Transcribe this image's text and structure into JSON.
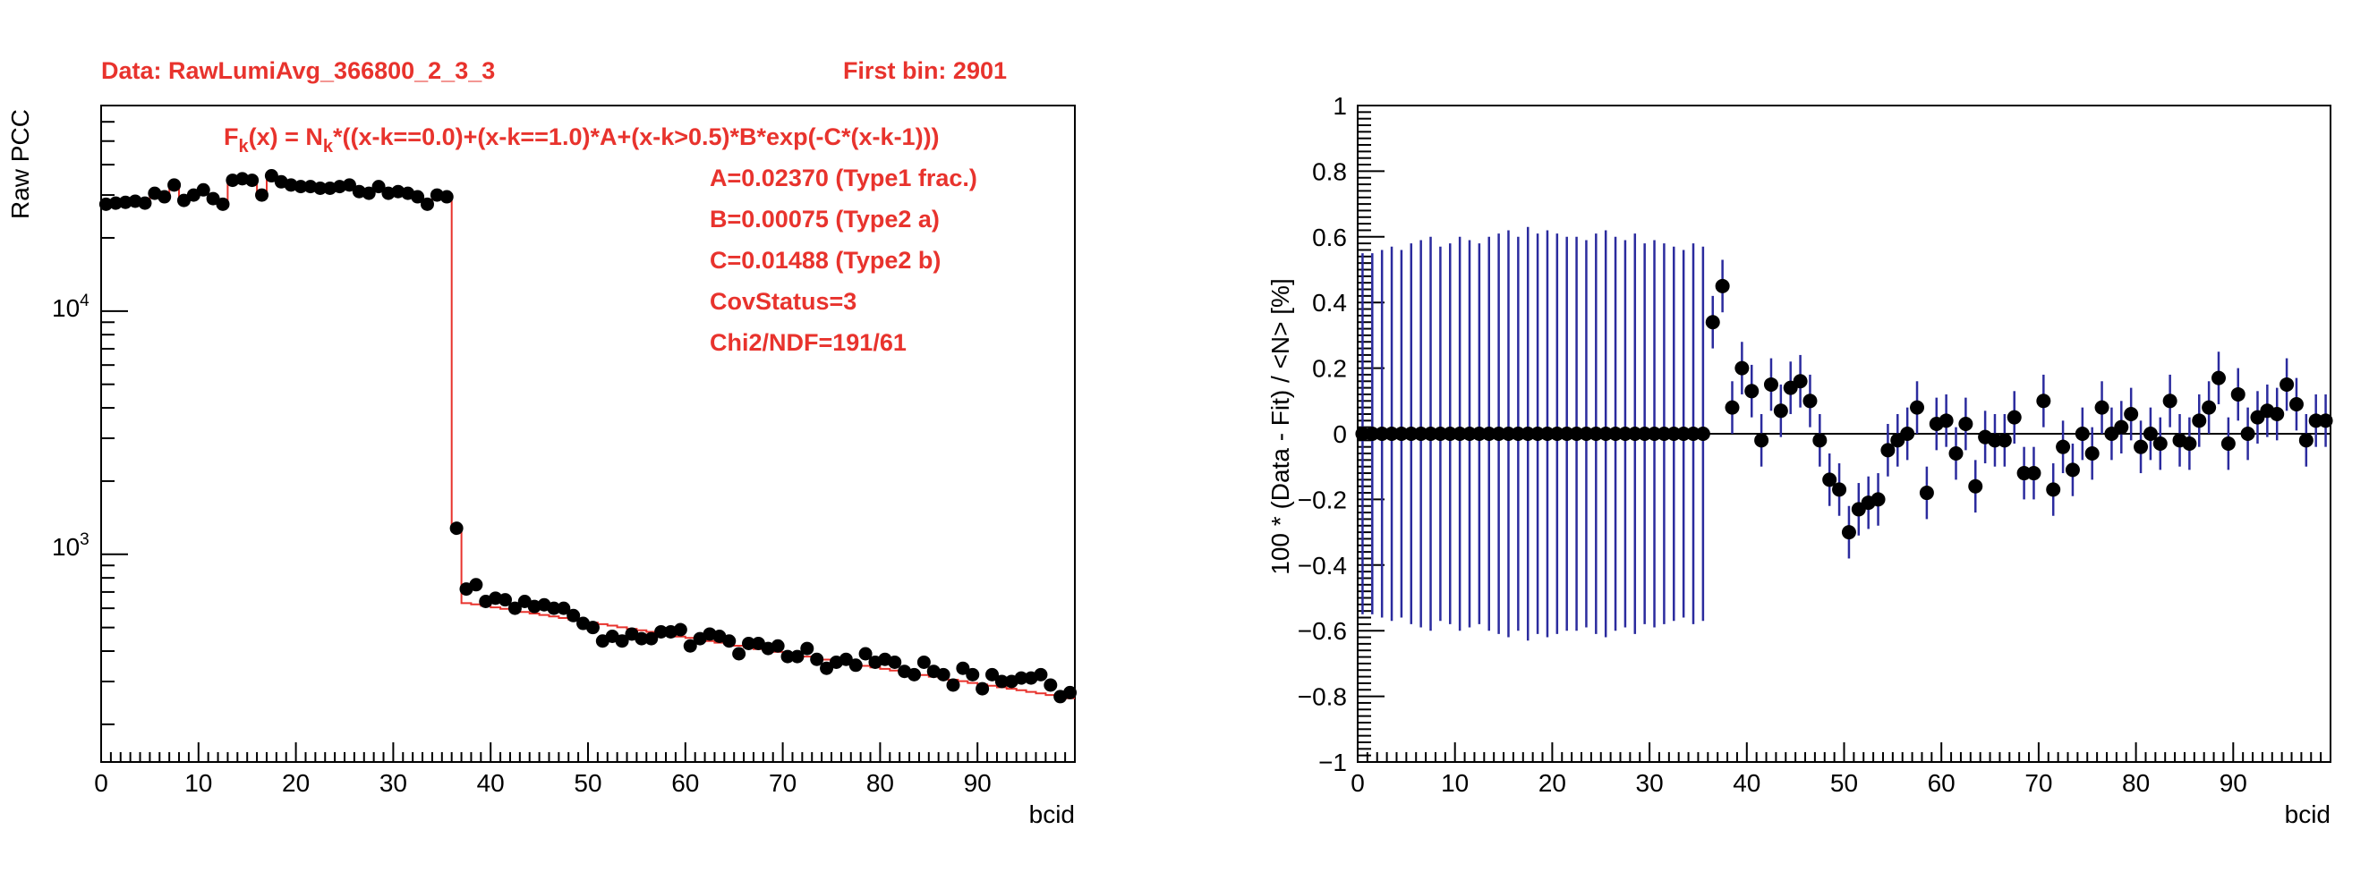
{
  "chart_data": [
    {
      "type": "scatter",
      "header_left": "Data: RawLumiAvg_366800_2_3_3",
      "header_right": "First bin: 2901",
      "formula_main": "F",
      "formula_sub1": "k",
      "formula_mid": "(x) = N",
      "formula_sub2": "k",
      "formula_rest": "*((x-k==0.0)+(x-k==1.0)*A+(x-k>0.5)*B*exp(-C*(x-k-1)))",
      "param_lines": [
        "A=0.02370 (Type1 frac.)",
        "B=0.00075 (Type2 a)",
        "C=0.01488 (Type2 b)",
        "CovStatus=3",
        "Chi2/NDF=191/61"
      ],
      "ylabel": "Raw PCC",
      "xlabel": "bcid",
      "y_scale": "log",
      "xlim": [
        0,
        100
      ],
      "ylim": [
        140,
        70000
      ],
      "x_tick_labels": [
        "0",
        "10",
        "20",
        "30",
        "40",
        "50",
        "60",
        "70",
        "80",
        "90"
      ],
      "y_tick_labels": [
        {
          "base": "10",
          "exp": "4",
          "value": 10000
        },
        {
          "base": "10",
          "exp": "3",
          "value": 1000
        }
      ],
      "series": [
        {
          "role": "data",
          "x": [
            0,
            1,
            2,
            3,
            4,
            5,
            6,
            7,
            8,
            9,
            10,
            11,
            12,
            13,
            14,
            15,
            16,
            17,
            18,
            19,
            20,
            21,
            22,
            23,
            24,
            25,
            26,
            27,
            28,
            29,
            30,
            31,
            32,
            33,
            34,
            35,
            36,
            37,
            38,
            39,
            40,
            41,
            42,
            43,
            44,
            45,
            46,
            47,
            48,
            49,
            50,
            51,
            52,
            53,
            54,
            55,
            56,
            57,
            58,
            59,
            60,
            61,
            62,
            63,
            64,
            65,
            66,
            67,
            68,
            69,
            70,
            71,
            72,
            73,
            74,
            75,
            76,
            77,
            78,
            79,
            80,
            81,
            82,
            83,
            84,
            85,
            86,
            87,
            88,
            89,
            90,
            91,
            92,
            93,
            94,
            95,
            96,
            97,
            98,
            99
          ],
          "y": [
            27500,
            27800,
            28000,
            28300,
            27800,
            30500,
            29500,
            33000,
            28500,
            30000,
            31500,
            29000,
            27500,
            34500,
            35000,
            34500,
            30000,
            36000,
            34000,
            33000,
            32500,
            32500,
            32000,
            32000,
            32500,
            33000,
            31000,
            30500,
            32500,
            30500,
            31000,
            30500,
            29500,
            27500,
            30000,
            29500,
            1280,
            720,
            750,
            640,
            660,
            650,
            600,
            640,
            610,
            620,
            600,
            600,
            560,
            520,
            500,
            440,
            460,
            440,
            470,
            450,
            450,
            480,
            480,
            490,
            420,
            450,
            470,
            460,
            440,
            390,
            430,
            430,
            410,
            420,
            380,
            380,
            410,
            370,
            340,
            360,
            370,
            350,
            390,
            360,
            370,
            360,
            330,
            320,
            360,
            330,
            320,
            290,
            340,
            320,
            280,
            320,
            300,
            300,
            310,
            310,
            320,
            290,
            260,
            270
          ]
        },
        {
          "role": "fit",
          "x": [
            0,
            1,
            2,
            3,
            4,
            5,
            6,
            7,
            8,
            9,
            10,
            11,
            12,
            13,
            14,
            15,
            16,
            17,
            18,
            19,
            20,
            21,
            22,
            23,
            24,
            25,
            26,
            27,
            28,
            29,
            30,
            31,
            32,
            33,
            34,
            35,
            36,
            37,
            38,
            39,
            40,
            41,
            42,
            43,
            44,
            45,
            46,
            47,
            48,
            49,
            50,
            51,
            52,
            53,
            54,
            55,
            56,
            57,
            58,
            59,
            60,
            61,
            62,
            63,
            64,
            65,
            66,
            67,
            68,
            69,
            70,
            71,
            72,
            73,
            74,
            75,
            76,
            77,
            78,
            79,
            80,
            81,
            82,
            83,
            84,
            85,
            86,
            87,
            88,
            89,
            90,
            91,
            92,
            93,
            94,
            95,
            96,
            97,
            98,
            99
          ],
          "y": [
            27500,
            27800,
            28000,
            28300,
            27800,
            30500,
            29500,
            33000,
            28500,
            30000,
            31500,
            29000,
            27500,
            34500,
            35000,
            34500,
            30000,
            36000,
            34000,
            33000,
            32500,
            32500,
            32000,
            32000,
            32500,
            33000,
            31000,
            30500,
            32500,
            30500,
            31000,
            30500,
            29500,
            27500,
            30000,
            29500,
            1280,
            630,
            623,
            614,
            605,
            597,
            588,
            579,
            571,
            563,
            555,
            547,
            539,
            531,
            524,
            516,
            509,
            501,
            494,
            487,
            480,
            473,
            466,
            459,
            453,
            446,
            440,
            433,
            427,
            421,
            415,
            408,
            403,
            397,
            391,
            385,
            380,
            374,
            369,
            364,
            358,
            353,
            348,
            343,
            338,
            333,
            328,
            324,
            319,
            314,
            310,
            305,
            301,
            296,
            292,
            288,
            284,
            280,
            276,
            272,
            268,
            264,
            260,
            256
          ]
        }
      ]
    },
    {
      "type": "scatter",
      "ylabel": "100 * (Data - Fit) / <N>   [%]",
      "xlabel": "bcid",
      "xlim": [
        0,
        100
      ],
      "ylim": [
        -1,
        1
      ],
      "x_tick_labels": [
        "0",
        "10",
        "20",
        "30",
        "40",
        "50",
        "60",
        "70",
        "80",
        "90"
      ],
      "y_tick_labels": [
        "1",
        "0.8",
        "0.6",
        "0.4",
        "0.2",
        "0",
        "−0.2",
        "−0.4",
        "−0.6",
        "−0.8",
        "−1"
      ],
      "y_tick_values": [
        1,
        0.8,
        0.6,
        0.4,
        0.2,
        0,
        -0.2,
        -0.4,
        -0.6,
        -0.8,
        -1
      ],
      "x": [
        0,
        1,
        2,
        3,
        4,
        5,
        6,
        7,
        8,
        9,
        10,
        11,
        12,
        13,
        14,
        15,
        16,
        17,
        18,
        19,
        20,
        21,
        22,
        23,
        24,
        25,
        26,
        27,
        28,
        29,
        30,
        31,
        32,
        33,
        34,
        35,
        36,
        37,
        38,
        39,
        40,
        41,
        42,
        43,
        44,
        45,
        46,
        47,
        48,
        49,
        50,
        51,
        52,
        53,
        54,
        55,
        56,
        57,
        58,
        59,
        60,
        61,
        62,
        63,
        64,
        65,
        66,
        67,
        68,
        69,
        70,
        71,
        72,
        73,
        74,
        75,
        76,
        77,
        78,
        79,
        80,
        81,
        82,
        83,
        84,
        85,
        86,
        87,
        88,
        89,
        90,
        91,
        92,
        93,
        94,
        95,
        96,
        97,
        98,
        99
      ],
      "y": [
        0,
        0,
        0,
        0,
        0,
        0,
        0,
        0,
        0,
        0,
        0,
        0,
        0,
        0,
        0,
        0,
        0,
        0,
        0,
        0,
        0,
        0,
        0,
        0,
        0,
        0,
        0,
        0,
        0,
        0,
        0,
        0,
        0,
        0,
        0,
        0,
        0.34,
        0.45,
        0.08,
        0.2,
        0.13,
        -0.02,
        0.15,
        0.07,
        0.14,
        0.16,
        0.1,
        -0.02,
        -0.14,
        -0.17,
        -0.3,
        -0.23,
        -0.21,
        -0.2,
        -0.05,
        -0.02,
        0,
        0.08,
        -0.18,
        0.03,
        0.04,
        -0.06,
        0.03,
        -0.16,
        -0.01,
        -0.02,
        -0.02,
        0.05,
        -0.12,
        -0.12,
        0.1,
        -0.17,
        -0.04,
        -0.11,
        0,
        -0.06,
        0.08,
        0,
        0.02,
        0.06,
        -0.04,
        0,
        -0.03,
        0.1,
        -0.02,
        -0.03,
        0.04,
        0.08,
        0.17,
        -0.03,
        0.12,
        0,
        0.05,
        0.07,
        0.06,
        0.15,
        0.09,
        -0.02,
        0.04,
        0.04
      ],
      "err": [
        0.55,
        0.55,
        0.56,
        0.57,
        0.56,
        0.58,
        0.59,
        0.6,
        0.57,
        0.58,
        0.6,
        0.59,
        0.58,
        0.6,
        0.61,
        0.62,
        0.6,
        0.63,
        0.61,
        0.62,
        0.61,
        0.6,
        0.6,
        0.59,
        0.61,
        0.62,
        0.6,
        0.59,
        0.61,
        0.58,
        0.59,
        0.58,
        0.57,
        0.56,
        0.58,
        0.57,
        0.08,
        0.08,
        0.08,
        0.08,
        0.08,
        0.08,
        0.08,
        0.08,
        0.08,
        0.08,
        0.08,
        0.08,
        0.08,
        0.08,
        0.08,
        0.08,
        0.08,
        0.08,
        0.08,
        0.08,
        0.08,
        0.08,
        0.08,
        0.08,
        0.08,
        0.08,
        0.08,
        0.08,
        0.08,
        0.08,
        0.08,
        0.08,
        0.08,
        0.08,
        0.08,
        0.08,
        0.08,
        0.08,
        0.08,
        0.08,
        0.08,
        0.08,
        0.08,
        0.08,
        0.08,
        0.08,
        0.08,
        0.08,
        0.08,
        0.08,
        0.08,
        0.08,
        0.08,
        0.08,
        0.08,
        0.08,
        0.08,
        0.08,
        0.08,
        0.08,
        0.08,
        0.08,
        0.08,
        0.08
      ],
      "colors": {
        "error_bar": "#2b2b9e",
        "marker": "#000000",
        "zero_line": "#000000"
      }
    }
  ],
  "colors": {
    "annotation": "#e8332d",
    "fit_line": "#e8332d",
    "marker": "#000000"
  }
}
